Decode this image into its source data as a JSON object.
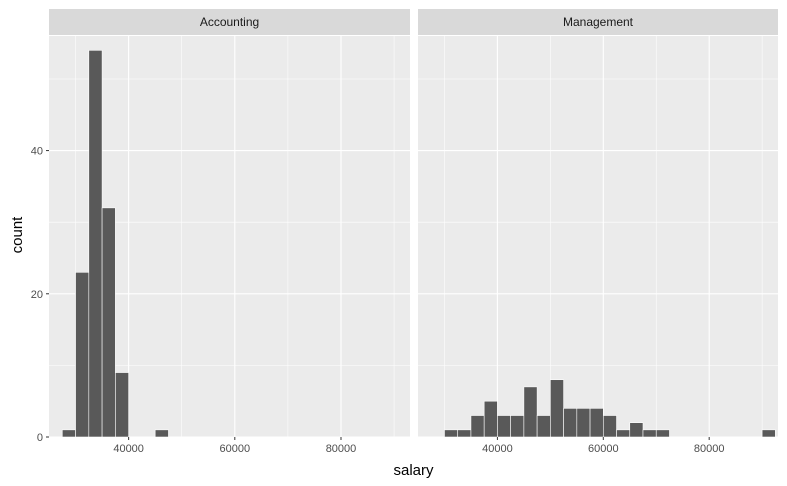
{
  "chart_data": {
    "type": "bar",
    "title": "",
    "xlabel": "salary",
    "ylabel": "count",
    "xlim": [
      25000,
      93000
    ],
    "ylim": [
      0,
      56
    ],
    "binwidth": 2500,
    "x_ticks": [
      40000,
      60000,
      80000
    ],
    "x_tick_labels": [
      "40000",
      "60000",
      "80000"
    ],
    "y_ticks": [
      0,
      20,
      40
    ],
    "y_tick_labels": [
      "0",
      "20",
      "40"
    ],
    "facets": [
      {
        "name": "Accounting",
        "bins": [
          {
            "start": 27500,
            "end": 30000,
            "count": 1
          },
          {
            "start": 30000,
            "end": 32500,
            "count": 23
          },
          {
            "start": 32500,
            "end": 35000,
            "count": 54
          },
          {
            "start": 35000,
            "end": 37500,
            "count": 32
          },
          {
            "start": 37500,
            "end": 40000,
            "count": 9
          },
          {
            "start": 45000,
            "end": 47500,
            "count": 1
          }
        ]
      },
      {
        "name": "Management",
        "bins": [
          {
            "start": 30000,
            "end": 32500,
            "count": 1
          },
          {
            "start": 32500,
            "end": 35000,
            "count": 1
          },
          {
            "start": 35000,
            "end": 37500,
            "count": 3
          },
          {
            "start": 37500,
            "end": 40000,
            "count": 5
          },
          {
            "start": 40000,
            "end": 42500,
            "count": 3
          },
          {
            "start": 42500,
            "end": 45000,
            "count": 3
          },
          {
            "start": 45000,
            "end": 47500,
            "count": 7
          },
          {
            "start": 47500,
            "end": 50000,
            "count": 3
          },
          {
            "start": 50000,
            "end": 52500,
            "count": 8
          },
          {
            "start": 52500,
            "end": 55000,
            "count": 4
          },
          {
            "start": 55000,
            "end": 57500,
            "count": 4
          },
          {
            "start": 57500,
            "end": 60000,
            "count": 4
          },
          {
            "start": 60000,
            "end": 62500,
            "count": 3
          },
          {
            "start": 62500,
            "end": 65000,
            "count": 1
          },
          {
            "start": 65000,
            "end": 67500,
            "count": 2
          },
          {
            "start": 67500,
            "end": 70000,
            "count": 1
          },
          {
            "start": 70000,
            "end": 72500,
            "count": 1
          },
          {
            "start": 90000,
            "end": 92500,
            "count": 1
          }
        ]
      }
    ],
    "colors": {
      "panel_bg": "#ebebeb",
      "strip_bg": "#d9d9d9",
      "grid": "#ffffff",
      "bar_fill": "#595959",
      "bar_outline": "#ffffff",
      "tick": "#333333"
    }
  }
}
